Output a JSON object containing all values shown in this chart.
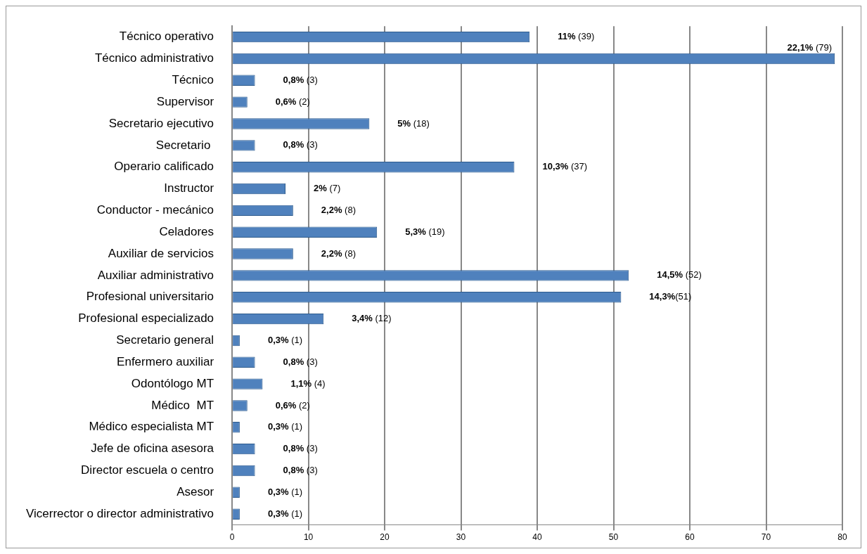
{
  "chart_data": {
    "type": "bar",
    "orientation": "horizontal",
    "categories": [
      "Técnico operativo",
      "Técnico administrativo",
      "Técnico",
      "Supervisor",
      "Secretario ejecutivo",
      "Secretario ",
      "Operario calificado",
      "Instructor",
      "Conductor - mecánico",
      "Celadores",
      "Auxiliar de servicios",
      "Auxiliar administrativo",
      "Profesional universitario",
      "Profesional especializado",
      "Secretario general",
      "Enfermero auxiliar",
      "Odontólogo MT",
      "Médico  MT",
      "Médico especialista MT",
      "Jefe de oficina asesora",
      "Director escuela o centro",
      "Asesor",
      "Vicerrector o director administrativo"
    ],
    "values": [
      39,
      79,
      3,
      2,
      18,
      3,
      37,
      7,
      8,
      19,
      8,
      52,
      51,
      12,
      1,
      3,
      4,
      2,
      1,
      3,
      3,
      1,
      1
    ],
    "value_labels": [
      "11% (39)",
      "22,1% (79)",
      "0,8% (3)",
      "0,6% (2)",
      "5% (18)",
      "0,8% (3)",
      "10,3% (37)",
      "2% (7)",
      "2,2% (8)",
      "5,3% (19)",
      "2,2% (8)",
      "14,5% (52)",
      "14,3%(51)",
      "3,4% (12)",
      "0,3% (1)",
      "0,8% (3)",
      "1,1% (4)",
      "0,6% (2)",
      "0,3% (1)",
      "0,8% (3)",
      "0,8% (3)",
      "0,3% (1)",
      "0,3% (1)"
    ],
    "color": "#4f81bd",
    "xlim": [
      0,
      80
    ],
    "xticks": [
      0,
      10,
      20,
      30,
      40,
      50,
      60,
      70,
      80
    ],
    "grid": "x",
    "legend": false
  }
}
